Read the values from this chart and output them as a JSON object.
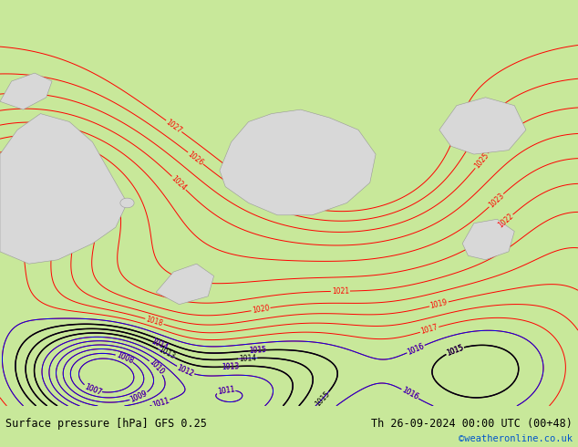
{
  "title_left": "Surface pressure [hPa] GFS 0.25",
  "title_right": "Th 26-09-2024 00:00 UTC (00+48)",
  "credit": "©weatheronline.co.uk",
  "background_color": "#b5e878",
  "contour_color_red": "#ff0000",
  "contour_color_blue": "#0000ee",
  "contour_color_black": "#000000",
  "credit_color": "#0055cc",
  "bottom_bar_color": "#c8e89a",
  "fig_width": 6.34,
  "fig_height": 4.9,
  "dpi": 100
}
